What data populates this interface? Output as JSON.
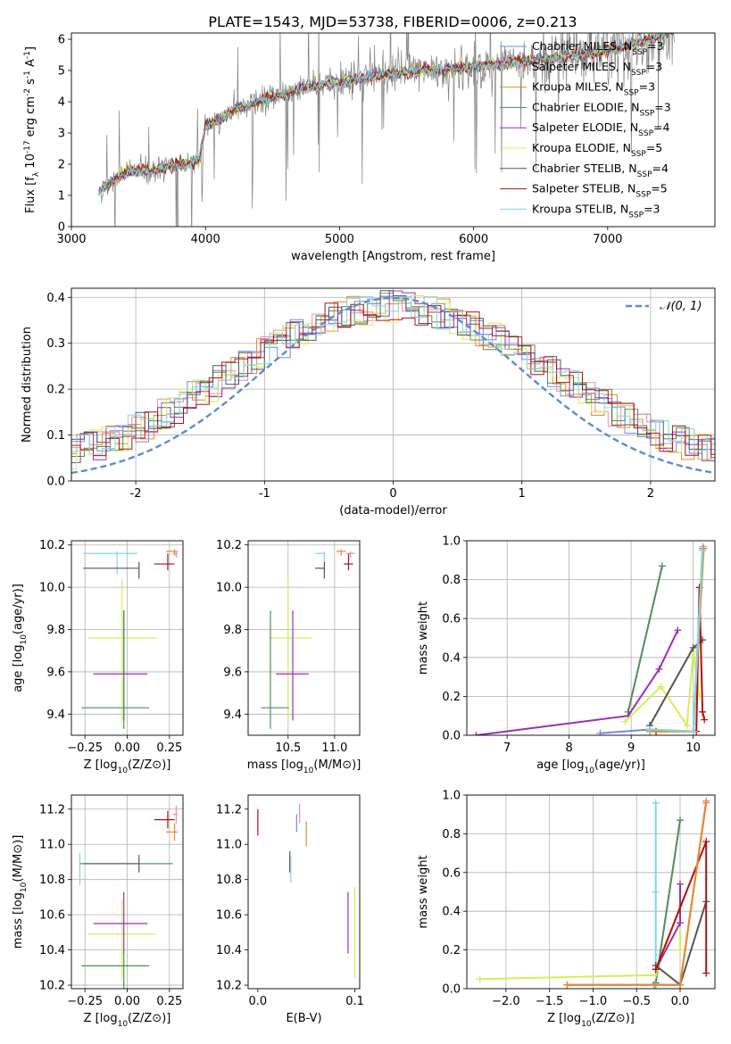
{
  "figure": {
    "title": "PLATE=1543, MJD=53738, FIBERID=0006, z=0.213"
  },
  "series_styles": [
    {
      "name": "Chabrier MILES",
      "nssp": "3",
      "color": "#6c8ee0"
    },
    {
      "name": "Salpeter MILES",
      "nssp": "3",
      "color": "#f08aa0"
    },
    {
      "name": "Kroupa MILES",
      "nssp": "3",
      "color": "#e98a2a"
    },
    {
      "name": "Chabrier ELODIE",
      "nssp": "3",
      "color": "#4f8c5a"
    },
    {
      "name": "Salpeter ELODIE",
      "nssp": "4",
      "color": "#9b2fb0"
    },
    {
      "name": "Kroupa ELODIE",
      "nssp": "5",
      "color": "#d6ee55"
    },
    {
      "name": "Chabrier STELIB",
      "nssp": "4",
      "color": "#555555"
    },
    {
      "name": "Salpeter STELIB",
      "nssp": "5",
      "color": "#b01010"
    },
    {
      "name": "Kroupa STELIB",
      "nssp": "3",
      "color": "#7dd8e0"
    }
  ],
  "legend_nssp_sub": "SSP",
  "chart_data": [
    {
      "id": "spectrum",
      "type": "line",
      "xlabel": "wavelength [Angstrom, rest frame]",
      "ylabel": "Flux [f_λ 10^-17 erg cm^-2 s^-1 A^-1]",
      "xlim": [
        3000,
        7800
      ],
      "ylim": [
        0,
        6.2
      ],
      "xticks": [
        3000,
        4000,
        5000,
        6000,
        7000
      ],
      "yticks": [
        0,
        1,
        2,
        3,
        4,
        5,
        6
      ],
      "data_color": "#808080",
      "grid": false,
      "legend": "top-right",
      "continuum_knots": [
        [
          3200,
          1.1
        ],
        [
          3400,
          1.75
        ],
        [
          3600,
          1.8
        ],
        [
          3800,
          2.0
        ],
        [
          3950,
          2.1
        ],
        [
          4000,
          3.2
        ],
        [
          4200,
          3.7
        ],
        [
          4500,
          4.15
        ],
        [
          4800,
          4.5
        ],
        [
          5100,
          4.7
        ],
        [
          5400,
          4.9
        ],
        [
          5700,
          5.0
        ],
        [
          6000,
          5.1
        ],
        [
          6300,
          5.25
        ],
        [
          6600,
          5.4
        ],
        [
          6900,
          5.55
        ],
        [
          7200,
          5.85
        ],
        [
          7500,
          6.3
        ]
      ]
    },
    {
      "id": "residuals",
      "type": "histogram",
      "xlabel": "(data-model)/error",
      "ylabel": "Normed distribution",
      "xlim": [
        -2.5,
        2.5
      ],
      "ylim": [
        0,
        0.42
      ],
      "xticks": [
        -2,
        -1,
        0,
        1,
        2
      ],
      "yticks": [
        0.0,
        0.1,
        0.2,
        0.3,
        0.4
      ],
      "bin_width": 0.1,
      "reference_curve": {
        "label": "𝒩(0, 1)",
        "mu": 0,
        "sigma": 1,
        "color": "#5b8ad6"
      },
      "grid": true,
      "legend": "top-right"
    },
    {
      "id": "age-vs-Z",
      "type": "errorbar",
      "xlabel": "Z [log10(Z/Z⊙)]",
      "ylabel": "age  [log10(age/yr)]",
      "xlim": [
        -0.33,
        0.33
      ],
      "ylim": [
        9.3,
        10.22
      ],
      "xticks": [
        -0.25,
        0.0,
        0.25
      ],
      "xticklabels": [
        "−0.25",
        "0.00",
        "0.25"
      ],
      "yticks": [
        9.4,
        9.6,
        9.8,
        10.0,
        10.2
      ],
      "grid": true,
      "points": [
        {
          "series": 8,
          "x": -0.06,
          "xerr": [
            0.2,
            0.12
          ],
          "y": 10.16,
          "yerr": [
            0.1,
            0.01
          ]
        },
        {
          "series": 6,
          "x": 0.07,
          "xerr": [
            0.33,
            0.0
          ],
          "y": 10.09,
          "yerr": [
            0.05,
            0.03
          ]
        },
        {
          "series": 7,
          "x": 0.24,
          "xerr": [
            0.08,
            0.04
          ],
          "y": 10.11,
          "yerr": [
            0.03,
            0.05
          ]
        },
        {
          "series": 2,
          "x": 0.28,
          "xerr": [
            0.05,
            0.02
          ],
          "y": 10.17,
          "yerr": [
            0.02,
            0.01
          ]
        },
        {
          "series": 1,
          "x": 0.29,
          "xerr": [
            0.02,
            0.01
          ],
          "y": 10.16,
          "yerr": [
            0.02,
            0.01
          ]
        },
        {
          "series": 5,
          "x": -0.03,
          "xerr": [
            0.2,
            0.2
          ],
          "y": 9.76,
          "yerr": [
            0.4,
            0.28
          ]
        },
        {
          "series": 4,
          "x": -0.02,
          "xerr": [
            0.18,
            0.14
          ],
          "y": 9.59,
          "yerr": [
            0.22,
            0.3
          ]
        },
        {
          "series": 3,
          "x": -0.02,
          "xerr": [
            0.25,
            0.15
          ],
          "y": 9.43,
          "yerr": [
            0.1,
            0.46
          ]
        }
      ]
    },
    {
      "id": "age-vs-mass",
      "type": "errorbar",
      "xlabel": "mass [log10(M/M⊙)]",
      "ylabel": "",
      "xlim": [
        10.07,
        11.27
      ],
      "ylim": [
        9.3,
        10.22
      ],
      "xticks": [
        10.5,
        11.0
      ],
      "xticklabels": [
        "10.5",
        "11.0"
      ],
      "yticks": [
        9.4,
        9.6,
        9.8,
        10.0,
        10.2
      ],
      "grid": true,
      "points": [
        {
          "series": 8,
          "x": 10.89,
          "xerr": [
            0.1,
            0.0
          ],
          "y": 10.16,
          "yerr": [
            0.1,
            0.01
          ]
        },
        {
          "series": 6,
          "x": 10.89,
          "xerr": [
            0.1,
            0.0
          ],
          "y": 10.09,
          "yerr": [
            0.05,
            0.03
          ]
        },
        {
          "series": 7,
          "x": 11.15,
          "xerr": [
            0.05,
            0.05
          ],
          "y": 10.11,
          "yerr": [
            0.03,
            0.05
          ]
        },
        {
          "series": 2,
          "x": 11.07,
          "xerr": [
            0.05,
            0.05
          ],
          "y": 10.17,
          "yerr": [
            0.02,
            0.01
          ]
        },
        {
          "series": 1,
          "x": 11.17,
          "xerr": [
            0.05,
            0.05
          ],
          "y": 10.16,
          "yerr": [
            0.02,
            0.01
          ]
        },
        {
          "series": 5,
          "x": 10.5,
          "xerr": [
            0.2,
            0.25
          ],
          "y": 9.76,
          "yerr": [
            0.4,
            0.28
          ]
        },
        {
          "series": 4,
          "x": 10.55,
          "xerr": [
            0.18,
            0.17
          ],
          "y": 9.59,
          "yerr": [
            0.22,
            0.3
          ]
        },
        {
          "series": 3,
          "x": 10.31,
          "xerr": [
            0.1,
            0.2
          ],
          "y": 9.43,
          "yerr": [
            0.1,
            0.46
          ]
        }
      ]
    },
    {
      "id": "massweight-vs-age",
      "type": "line",
      "xlabel": "age  [log10(age/yr)]",
      "ylabel": "mass weight",
      "xlim": [
        6.35,
        10.35
      ],
      "ylim": [
        0,
        1.0
      ],
      "xticks": [
        7,
        8,
        9,
        10
      ],
      "yticks": [
        0.0,
        0.2,
        0.4,
        0.6,
        0.8,
        1.0
      ],
      "grid": true,
      "series": [
        {
          "series": 3,
          "x": [
            8.95,
            9.5
          ],
          "y": [
            0.12,
            0.87
          ]
        },
        {
          "series": 4,
          "x": [
            6.5,
            8.95,
            9.45,
            9.75
          ],
          "y": [
            0.0,
            0.1,
            0.34,
            0.54
          ]
        },
        {
          "series": 5,
          "x": [
            8.9,
            9.48,
            9.9,
            10.0,
            10.1
          ],
          "y": [
            0.07,
            0.25,
            0.05,
            0.43,
            0.2
          ]
        },
        {
          "series": 6,
          "x": [
            9.3,
            10.0,
            10.15
          ],
          "y": [
            0.05,
            0.45,
            0.49
          ]
        },
        {
          "series": 7,
          "x": [
            9.4,
            10.05,
            10.1,
            10.15,
            10.18
          ],
          "y": [
            0.02,
            0.02,
            0.76,
            0.12,
            0.08
          ]
        },
        {
          "series": 0,
          "x": [
            8.5,
            9.3,
            10.0,
            10.15
          ],
          "y": [
            0.01,
            0.03,
            0.02,
            0.96
          ]
        },
        {
          "series": 1,
          "x": [
            9.3,
            10.0,
            10.16
          ],
          "y": [
            0.02,
            0.02,
            0.97
          ]
        },
        {
          "series": 2,
          "x": [
            9.3,
            10.0,
            10.17
          ],
          "y": [
            0.02,
            0.02,
            0.96
          ]
        },
        {
          "series": 8,
          "x": [
            9.3,
            10.0,
            10.15
          ],
          "y": [
            0.03,
            0.02,
            0.95
          ]
        }
      ]
    },
    {
      "id": "mass-vs-Z",
      "type": "errorbar",
      "xlabel": "Z [log10(Z/Z⊙)]",
      "ylabel": "mass [log10(M/M⊙)]",
      "xlim": [
        -0.33,
        0.33
      ],
      "ylim": [
        10.18,
        11.28
      ],
      "xticks": [
        -0.25,
        0.0,
        0.25
      ],
      "xticklabels": [
        "−0.25",
        "0.00",
        "0.25"
      ],
      "yticks": [
        10.2,
        10.4,
        10.6,
        10.8,
        11.0,
        11.2
      ],
      "grid": true,
      "points": [
        {
          "series": 8,
          "x": -0.28,
          "xerr": [
            0.0,
            0.55
          ],
          "y": 10.89,
          "yerr": [
            0.12,
            0.06
          ]
        },
        {
          "series": 3,
          "x": -0.28,
          "xerr": [
            0.0,
            0.55
          ],
          "y": 10.89,
          "yerr": [
            0.0,
            0.0
          ]
        },
        {
          "series": 6,
          "x": 0.07,
          "xerr": [
            0.33,
            0.0
          ],
          "y": 10.89,
          "yerr": [
            0.05,
            0.05
          ]
        },
        {
          "series": 7,
          "x": 0.24,
          "xerr": [
            0.08,
            0.04
          ],
          "y": 11.14,
          "yerr": [
            0.05,
            0.05
          ]
        },
        {
          "series": 2,
          "x": 0.28,
          "xerr": [
            0.05,
            0.02
          ],
          "y": 11.07,
          "yerr": [
            0.05,
            0.05
          ]
        },
        {
          "series": 1,
          "x": 0.29,
          "xerr": [
            0.02,
            0.01
          ],
          "y": 11.17,
          "yerr": [
            0.05,
            0.05
          ]
        },
        {
          "series": 5,
          "x": -0.03,
          "xerr": [
            0.2,
            0.2
          ],
          "y": 10.49,
          "yerr": [
            0.25,
            0.2
          ]
        },
        {
          "series": 4,
          "x": -0.02,
          "xerr": [
            0.18,
            0.14
          ],
          "y": 10.55,
          "yerr": [
            0.17,
            0.18
          ]
        },
        {
          "series": 3,
          "x": -0.02,
          "xerr": [
            0.25,
            0.15
          ],
          "y": 10.31,
          "yerr": [
            0.2,
            0.1
          ]
        }
      ]
    },
    {
      "id": "mass-vs-ebv",
      "type": "errorbar",
      "xlabel": "E(B-V)",
      "ylabel": "",
      "xlim": [
        -0.01,
        0.105
      ],
      "ylim": [
        10.18,
        11.28
      ],
      "xticks": [
        0.0,
        0.1
      ],
      "xticklabels": [
        "0.0",
        "0.1"
      ],
      "yticks": [
        10.2,
        10.4,
        10.6,
        10.8,
        11.0,
        11.2
      ],
      "grid": false,
      "points": [
        {
          "series": 7,
          "x": 0.0,
          "xerr": [
            0,
            0
          ],
          "y": 11.13,
          "yerr": [
            0.08,
            0.07
          ]
        },
        {
          "series": 0,
          "x": 0.04,
          "xerr": [
            0,
            0
          ],
          "y": 11.12,
          "yerr": [
            0.05,
            0.05
          ]
        },
        {
          "series": 1,
          "x": 0.043,
          "xerr": [
            0,
            0
          ],
          "y": 11.17,
          "yerr": [
            0.05,
            0.06
          ]
        },
        {
          "series": 2,
          "x": 0.05,
          "xerr": [
            0,
            0
          ],
          "y": 11.06,
          "yerr": [
            0.07,
            0.07
          ]
        },
        {
          "series": 6,
          "x": 0.033,
          "xerr": [
            0,
            0
          ],
          "y": 10.89,
          "yerr": [
            0.05,
            0.07
          ]
        },
        {
          "series": 8,
          "x": 0.034,
          "xerr": [
            0,
            0
          ],
          "y": 10.88,
          "yerr": [
            0.1,
            0.05
          ]
        },
        {
          "series": 4,
          "x": 0.093,
          "xerr": [
            0,
            0
          ],
          "y": 10.55,
          "yerr": [
            0.17,
            0.18
          ]
        },
        {
          "series": 5,
          "x": 0.1,
          "xerr": [
            0,
            0
          ],
          "y": 10.49,
          "yerr": [
            0.25,
            0.27
          ]
        }
      ]
    },
    {
      "id": "massweight-vs-Z",
      "type": "line",
      "xlabel": "Z [log10(Z/Z⊙)]",
      "ylabel": "mass weight",
      "xlim": [
        -2.45,
        0.4
      ],
      "ylim": [
        0,
        1.0
      ],
      "xticks": [
        -2.0,
        -1.5,
        -1.0,
        -0.5,
        0.0
      ],
      "xticklabels": [
        "−2.0",
        "−1.5",
        "−1.0",
        "−0.5",
        "0.0"
      ],
      "yticks": [
        0.0,
        0.2,
        0.4,
        0.6,
        0.8,
        1.0
      ],
      "grid": true,
      "series": [
        {
          "series": 8,
          "x": [
            -0.28,
            -0.28,
            -0.28
          ],
          "y": [
            0.03,
            0.5,
            0.96
          ]
        },
        {
          "series": 3,
          "x": [
            -0.28,
            0.0
          ],
          "y": [
            0.03,
            0.87
          ]
        },
        {
          "series": 5,
          "x": [
            -2.3,
            -0.28,
            0.0,
            0.0
          ],
          "y": [
            0.05,
            0.07,
            0.43,
            0.2
          ]
        },
        {
          "series": 4,
          "x": [
            -0.28,
            0.0,
            0.0
          ],
          "y": [
            0.1,
            0.34,
            0.54
          ]
        },
        {
          "series": 6,
          "x": [
            -0.28,
            0.0,
            0.3
          ],
          "y": [
            0.12,
            0.02,
            0.45
          ]
        },
        {
          "series": 7,
          "x": [
            -0.28,
            0.3,
            0.3
          ],
          "y": [
            0.1,
            0.76,
            0.08
          ]
        },
        {
          "series": 0,
          "x": [
            -1.3,
            -0.3,
            0.0,
            0.3
          ],
          "y": [
            0.02,
            0.02,
            0.02,
            0.97
          ]
        },
        {
          "series": 1,
          "x": [
            -1.3,
            0.0,
            0.3
          ],
          "y": [
            0.02,
            0.02,
            0.97
          ]
        },
        {
          "series": 2,
          "x": [
            -1.3,
            -0.28,
            0.0,
            0.3
          ],
          "y": [
            0.02,
            0.02,
            0.02,
            0.96
          ]
        }
      ]
    }
  ]
}
